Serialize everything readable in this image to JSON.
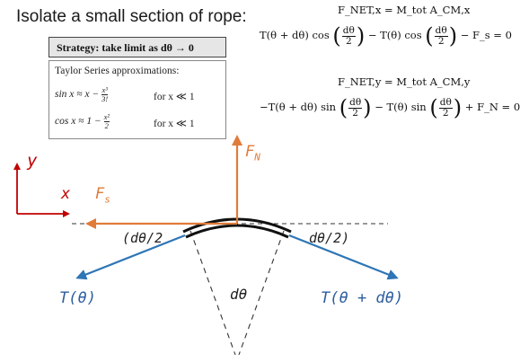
{
  "heading": "Isolate a small section of rope:",
  "strategy": "Strategy: take limit as dθ → 0",
  "taylor": {
    "title": "Taylor Series approximations:",
    "sin_lhs": "sin x ≈ x −",
    "sin_num": "x³",
    "sin_den": "3!",
    "cos_lhs": "cos x ≈ 1 −",
    "cos_num": "x²",
    "cos_den": "2",
    "condition": "for x ≪ 1"
  },
  "equations": {
    "x_header": "F_NET,x = M_tot A_CM,x",
    "x_eq": {
      "t1": "T(θ + dθ) cos",
      "t2": "− T(θ) cos",
      "t3": "− F_s = 0",
      "frac_num": "dθ",
      "frac_den": "2"
    },
    "y_header": "F_NET,y = M_tot A_CM,y",
    "y_eq": {
      "t1": "−T(θ + dθ) sin",
      "t2": "− T(θ) sin",
      "t3": "+ F_N = 0",
      "frac_num": "dθ",
      "frac_den": "2"
    }
  },
  "diagram": {
    "axis_y": "y",
    "axis_x": "x",
    "fn_label": "F",
    "fn_sub": "N",
    "fs_label": "F",
    "fs_sub": "s",
    "half_angle_left": "(dθ/2",
    "half_angle_right": "dθ/2)",
    "angle": "dθ",
    "tension_left": "T(θ)",
    "tension_right": "T(θ + dθ)"
  },
  "colors": {
    "red_axes": "#c00000",
    "orange_force": "#e07b39",
    "blue_tension": "#2e75b6",
    "label_blue": "#2e5e9e"
  }
}
